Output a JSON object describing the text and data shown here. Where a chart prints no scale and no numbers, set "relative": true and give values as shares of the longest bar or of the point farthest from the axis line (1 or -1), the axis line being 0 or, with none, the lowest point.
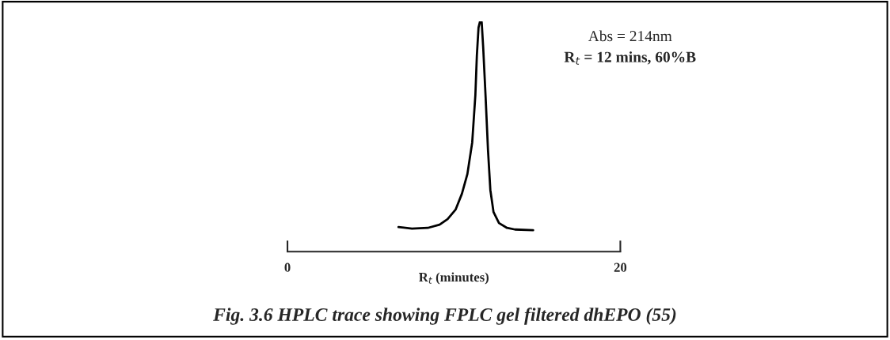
{
  "chart_data": {
    "type": "line",
    "title": "Fig. 3.6 HPLC trace showing FPLC gel filtered dhEPO (55)",
    "xlabel": "R$_{t}$ (minutes)",
    "annotations": [
      "Abs = 214nm",
      "R$_{t}$ = 12 mins, 60%B"
    ],
    "relative": true,
    "xlim": [
      0,
      20
    ],
    "xticks": [
      0,
      20
    ],
    "grid": false,
    "legend": false,
    "marker": "none",
    "line_style": "solid",
    "tick_labels": "x",
    "series": [
      {
        "color": "#000000",
        "x": [
          6.67,
          7.48,
          8.43,
          9.14,
          9.62,
          10.1,
          10.48,
          10.81,
          11.1,
          11.29,
          11.38,
          11.48,
          11.57,
          11.67,
          11.76,
          11.9,
          12.05,
          12.19,
          12.38,
          12.71,
          13.19,
          13.67,
          14.76
        ],
        "values": [
          0.107,
          0.1,
          0.103,
          0.117,
          0.141,
          0.182,
          0.251,
          0.337,
          0.474,
          0.68,
          0.852,
          0.973,
          1,
          0.997,
          0.887,
          0.68,
          0.44,
          0.268,
          0.172,
          0.124,
          0.103,
          0.096,
          0.093
        ]
      }
    ]
  }
}
